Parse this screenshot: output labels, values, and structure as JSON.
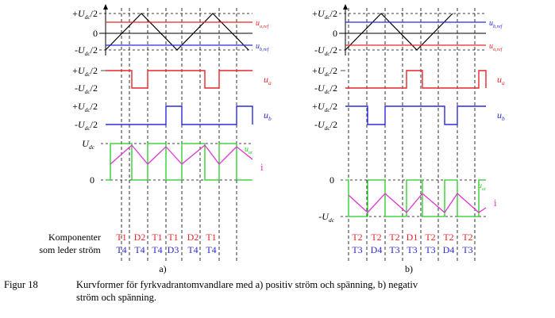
{
  "colors": {
    "red": "#e8262a",
    "blue": "#2b2bd9",
    "green": "#22cc22",
    "magenta": "#e433d3",
    "black": "#000000"
  },
  "panels": [
    {
      "id": "a",
      "label": "a)",
      "carrier_labels": [
        "+U_dc/2",
        "0",
        "-U_dc/2"
      ],
      "ref_labels": {
        "top": "u_a,ref",
        "bottom": "u_b,ref"
      },
      "ua_levels": [
        "+U_dc/2",
        "-U_dc/2"
      ],
      "ua_name": "u_a",
      "ub_levels": [
        "+U_dc/2",
        "-U_dc/2"
      ],
      "ub_name": "u_b",
      "ud_levels": [
        "U_dc",
        "0"
      ],
      "ud_name": "u_ut",
      "i_name": "i",
      "components_top": [
        "T1",
        "D2",
        "T1",
        "T1",
        "D2",
        "T1"
      ],
      "components_bottom": [
        "T4",
        "T4",
        "T4",
        "D3",
        "T4",
        "T4"
      ]
    },
    {
      "id": "b",
      "label": "b)",
      "carrier_labels": [
        "+U_dc/2",
        "0",
        "-U_dc/2"
      ],
      "ref_labels": {
        "top": "u_b,ref",
        "bottom": "u_a,ref"
      },
      "ua_levels": [
        "+U_dc/2",
        "-U_dc/2"
      ],
      "ua_name": "u_a",
      "ub_levels": [
        "+U_dc/2",
        "-U_dc/2"
      ],
      "ub_name": "u_b",
      "ud_levels": [
        "0",
        "-U_dc"
      ],
      "ud_name": "u_ut",
      "i_name": "i",
      "components_top": [
        "T2",
        "T2",
        "T2",
        "D1",
        "T2",
        "T2",
        "T2"
      ],
      "components_bottom": [
        "T3",
        "D4",
        "T3",
        "T3",
        "T3",
        "D4",
        "T3"
      ]
    }
  ],
  "components_row_label": [
    "Komponenter",
    "som leder ström"
  ],
  "caption": {
    "number": "Figur 18",
    "line1": "Kurvformer för fyrkvadrantomvandlare med a) positiv ström och spänning, b) negativ",
    "line2": "ström och spänning."
  }
}
